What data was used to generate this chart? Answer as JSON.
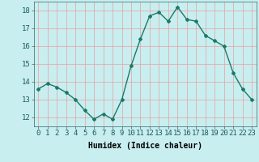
{
  "x": [
    0,
    1,
    2,
    3,
    4,
    5,
    6,
    7,
    8,
    9,
    10,
    11,
    12,
    13,
    14,
    15,
    16,
    17,
    18,
    19,
    20,
    21,
    22,
    23
  ],
  "y": [
    13.6,
    13.9,
    13.7,
    13.4,
    13.0,
    12.4,
    11.9,
    12.2,
    11.9,
    13.0,
    14.9,
    16.4,
    17.7,
    17.9,
    17.4,
    18.2,
    17.5,
    17.4,
    16.6,
    16.3,
    16.0,
    14.5,
    13.6,
    13.0
  ],
  "line_color": "#1a7a6a",
  "marker": "D",
  "marker_size": 2,
  "bg_color": "#c8eef0",
  "grid_color": "#e8a0a0",
  "xlabel": "Humidex (Indice chaleur)",
  "xlim": [
    -0.5,
    23.5
  ],
  "ylim": [
    11.5,
    18.5
  ],
  "yticks": [
    12,
    13,
    14,
    15,
    16,
    17,
    18
  ],
  "xticks": [
    0,
    1,
    2,
    3,
    4,
    5,
    6,
    7,
    8,
    9,
    10,
    11,
    12,
    13,
    14,
    15,
    16,
    17,
    18,
    19,
    20,
    21,
    22,
    23
  ],
  "xlabel_fontsize": 7,
  "tick_fontsize": 6.5,
  "font_family": "monospace"
}
